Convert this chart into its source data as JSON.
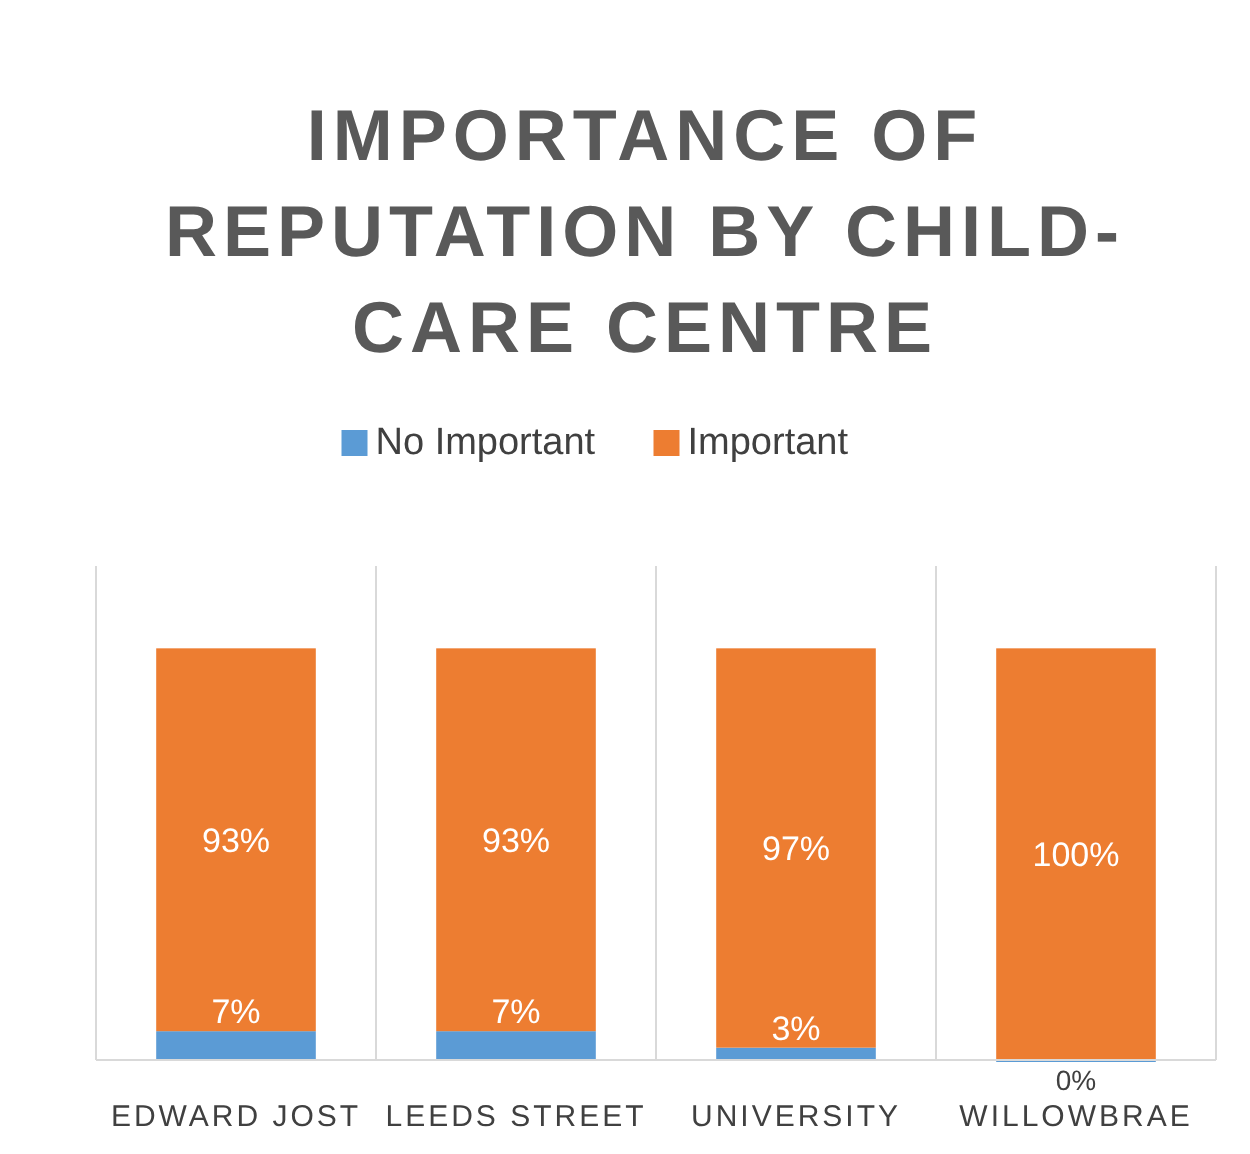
{
  "chart_data": {
    "type": "bar",
    "title": "IMPORTANCE OF REPUTATION BY CHILD-CARE CENTRE",
    "categories": [
      "EDWARD JOST",
      "LEEDS STREET",
      "UNIVERSITY",
      "WILLOWBRAE"
    ],
    "series": [
      {
        "name": "No Important",
        "color": "#5b9bd5",
        "values": [
          7,
          7,
          3,
          0
        ],
        "value_labels": [
          "7%",
          "7%",
          "3%",
          "0%"
        ]
      },
      {
        "name": "Important",
        "color": "#ed7d31",
        "values": [
          93,
          93,
          97,
          100
        ],
        "value_labels": [
          "93%",
          "93%",
          "97%",
          "100%"
        ]
      }
    ],
    "stacked": true,
    "tick_labels": "x",
    "grid": "x",
    "legend": "top"
  }
}
